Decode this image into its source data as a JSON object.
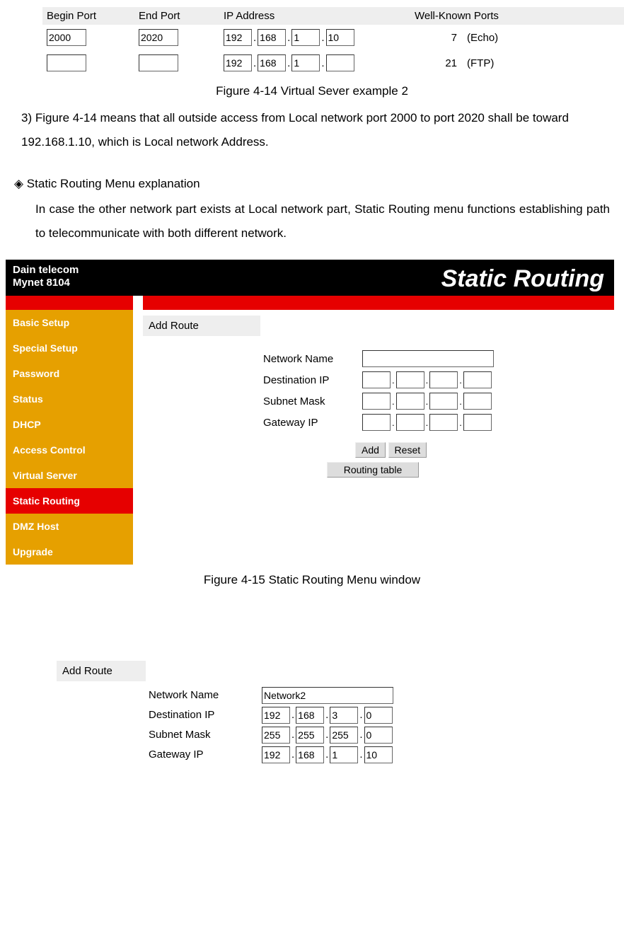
{
  "virtual_server": {
    "headers": {
      "begin": "Begin Port",
      "end": "End Port",
      "ip": "IP Address",
      "wk": "Well-Known Ports"
    },
    "rows": [
      {
        "begin": "2000",
        "end": "2020",
        "ip": [
          "192",
          "168",
          "1",
          "10"
        ],
        "wk_num": "7",
        "wk_name": "(Echo)"
      },
      {
        "begin": "",
        "end": "",
        "ip": [
          "192",
          "168",
          "1",
          ""
        ],
        "wk_num": "21",
        "wk_name": "(FTP)"
      }
    ]
  },
  "captions": {
    "fig414": "Figure 4-14 Virtual Sever example 2",
    "fig415": "Figure 4-15 Static Routing Menu window"
  },
  "para_3": "3) Figure 4-14 means that all outside access from Local network port 2000 to port 2020 shall be toward 192.168.1.10, which is Local network Address.",
  "section_head": "◈ Static Routing Menu explanation",
  "section_body": "In case the other network part exists at Local network part, Static Routing menu functions establishing path to telecommunicate with both different network.",
  "router": {
    "brand1": "Dain telecom",
    "brand2": "Mynet 8104",
    "title": "Static Routing",
    "sidebar": [
      "Basic Setup",
      "Special Setup",
      "Password",
      "Status",
      "DHCP",
      "Access Control",
      "Virtual Server",
      "Static Routing",
      "DMZ Host",
      "Upgrade"
    ],
    "active_index": 7,
    "add_route": "Add Route",
    "labels": {
      "network_name": "Network Name",
      "dest_ip": "Destination IP",
      "subnet": "Subnet Mask",
      "gateway": "Gateway IP"
    },
    "buttons": {
      "add": "Add",
      "reset": "Reset",
      "routing_table": "Routing table"
    }
  },
  "lower": {
    "header": "Add Route",
    "labels": {
      "network_name": "Network Name",
      "dest_ip": "Destination IP",
      "subnet": "Subnet Mask",
      "gateway": "Gateway IP"
    },
    "values": {
      "network_name": "Network2",
      "dest_ip": [
        "192",
        "168",
        "3",
        "0"
      ],
      "subnet": [
        "255",
        "255",
        "255",
        "0"
      ],
      "gateway": [
        "192",
        "168",
        "1",
        "10"
      ]
    }
  }
}
